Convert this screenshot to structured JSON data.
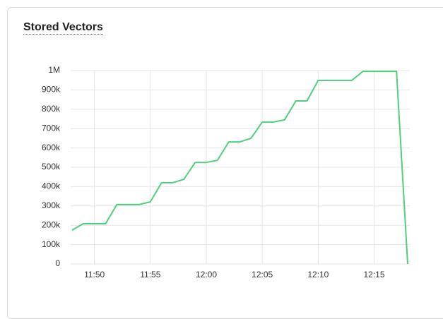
{
  "chart_data": {
    "type": "line",
    "title": "Stored Vectors",
    "categories": [
      null,
      null,
      "11:50",
      null,
      null,
      null,
      null,
      "11:55",
      null,
      null,
      null,
      null,
      "12:00",
      null,
      null,
      null,
      null,
      "12:05",
      null,
      null,
      null,
      null,
      "12:10",
      null,
      null,
      null,
      null,
      "12:15",
      null,
      null,
      null
    ],
    "series": [
      {
        "name": "Stored Vectors",
        "color": "#4fd07c",
        "values": [
          175000,
          208000,
          208000,
          208000,
          307000,
          307000,
          307000,
          321000,
          420000,
          420000,
          438000,
          525000,
          525000,
          536000,
          631000,
          631000,
          650000,
          734000,
          734000,
          745000,
          843000,
          843000,
          949000,
          949000,
          949000,
          949000,
          996000,
          996000,
          996000,
          996000,
          0
        ]
      }
    ],
    "ylim": [
      0,
      1000000
    ],
    "yticks": [
      0,
      {
        "value": 100000,
        "label": "100k"
      },
      {
        "value": 200000,
        "label": "200k"
      },
      {
        "value": 300000,
        "label": "300k"
      },
      {
        "value": 400000,
        "label": "400k"
      },
      {
        "value": 500000,
        "label": "500k"
      },
      {
        "value": 600000,
        "label": "600k"
      },
      {
        "value": 700000,
        "label": "700k"
      },
      {
        "value": 800000,
        "label": "800k"
      },
      {
        "value": 900000,
        "label": "900k"
      },
      {
        "value": 1000000,
        "label": "1M"
      }
    ],
    "grid": true
  }
}
